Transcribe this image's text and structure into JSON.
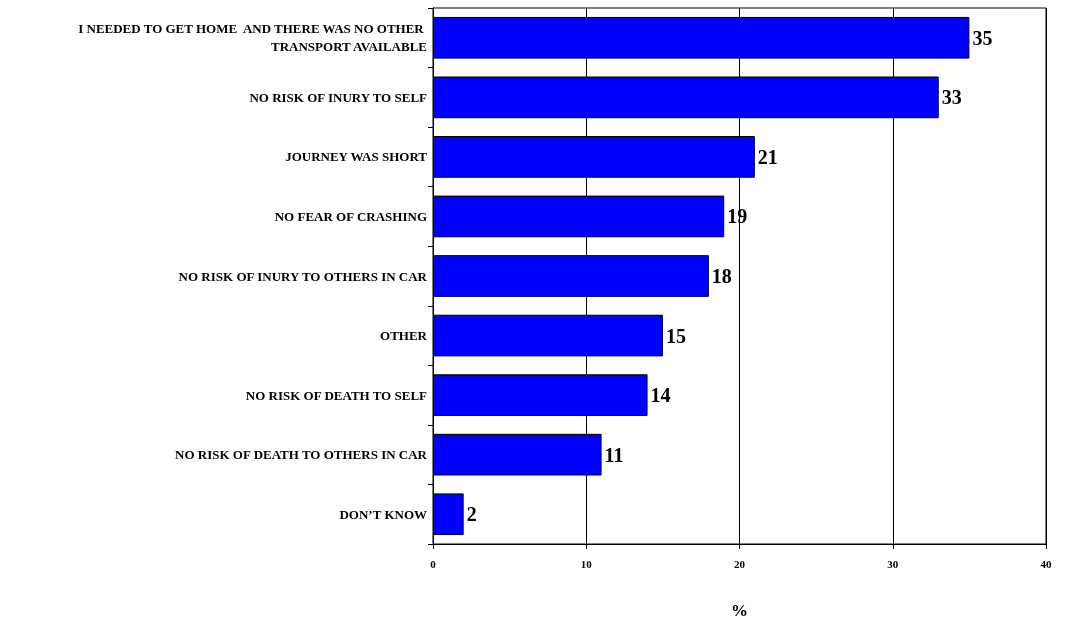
{
  "chart_data": {
    "type": "bar",
    "orientation": "horizontal",
    "xlabel": "%",
    "categories": [
      "I NEEDED TO GET HOME  AND THERE WAS NO OTHER TRANSPORT AVAILABLE",
      "NO RISK OF INURY TO SELF",
      "JOURNEY WAS SHORT",
      "NO FEAR OF CRASHING",
      "NO RISK OF INURY TO OTHERS IN CAR",
      "OTHER",
      "NO RISK OF DEATH TO SELF",
      "NO RISK OF DEATH TO OTHERS IN CAR",
      "DON’T KNOW"
    ],
    "values": [
      35,
      33,
      21,
      19,
      18,
      15,
      14,
      11,
      2
    ],
    "color": "#0000ff",
    "xlim": [
      0,
      40
    ],
    "xticks": [
      0,
      10,
      20,
      30,
      40
    ],
    "grid": "x",
    "data_labels": true
  }
}
